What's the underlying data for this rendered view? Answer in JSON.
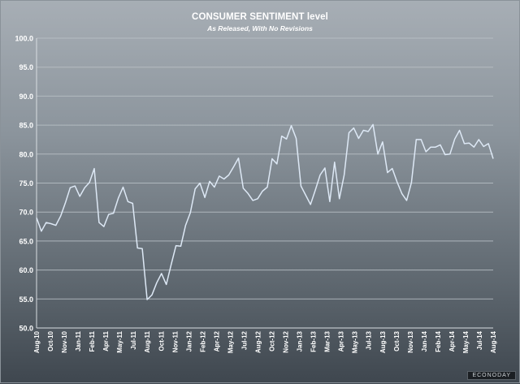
{
  "colors": {
    "line": "#dde8f5",
    "grid": "#b9c0c6",
    "text": "#ffffff"
  },
  "chart_data": {
    "type": "line",
    "title": "CONSUMER SENTIMENT level",
    "subtitle": "As Released, With No Revisions",
    "ylim": [
      50,
      100
    ],
    "yticks": [
      "50.0",
      "55.0",
      "60.0",
      "65.0",
      "70.0",
      "75.0",
      "80.0",
      "85.0",
      "90.0",
      "95.0",
      "100.0"
    ],
    "grid": "horizontal",
    "x_start": "Aug-10",
    "xtick_labels": [
      "Aug-10",
      "Oct-10",
      "Nov-10",
      "Jan-11",
      "Feb-11",
      "Apr-11",
      "May-11",
      "Jul-11",
      "Aug-11",
      "Oct-11",
      "Nov-11",
      "Jan-12",
      "Feb-12",
      "Apr-12",
      "May-12",
      "Jul-12",
      "Aug-12",
      "Oct-12",
      "Nov-12",
      "Jan-13",
      "Feb-13",
      "Mar-13",
      "Apr-13",
      "May-13",
      "Jul-13",
      "Aug-13",
      "Oct-13",
      "Nov-13",
      "Jan-14",
      "Feb-14",
      "Apr-14",
      "May-14",
      "Jul-14",
      "Aug-14"
    ],
    "series": [
      {
        "values": [
          69.0,
          66.7,
          68.2,
          68.0,
          67.7,
          69.3,
          71.6,
          74.2,
          74.5,
          72.7,
          74.2,
          75.1,
          77.5,
          68.2,
          67.5,
          69.6,
          69.8,
          72.4,
          74.3,
          71.8,
          71.5,
          63.8,
          63.7,
          54.9,
          55.7,
          57.8,
          59.4,
          57.5,
          60.9,
          64.2,
          64.1,
          67.7,
          69.9,
          74.0,
          75.0,
          72.5,
          75.3,
          74.3,
          76.2,
          75.7,
          76.4,
          77.8,
          79.3,
          74.1,
          73.2,
          72.0,
          72.3,
          73.6,
          74.3,
          79.2,
          78.3,
          83.1,
          82.6,
          84.9,
          82.7,
          74.5,
          72.9,
          71.3,
          73.8,
          76.4,
          77.6,
          71.8,
          78.6,
          72.3,
          76.4,
          83.7,
          84.5,
          82.7,
          84.1,
          83.9,
          85.1,
          80.0,
          82.1,
          76.8,
          77.5,
          75.2,
          73.2,
          72.0,
          75.1,
          82.5,
          82.5,
          80.4,
          81.2,
          81.2,
          81.6,
          79.9,
          80.0,
          82.6,
          84.1,
          81.8,
          81.9,
          81.2,
          82.5,
          81.3,
          81.8,
          79.2
        ]
      }
    ]
  },
  "watermark": "ECONODAY"
}
